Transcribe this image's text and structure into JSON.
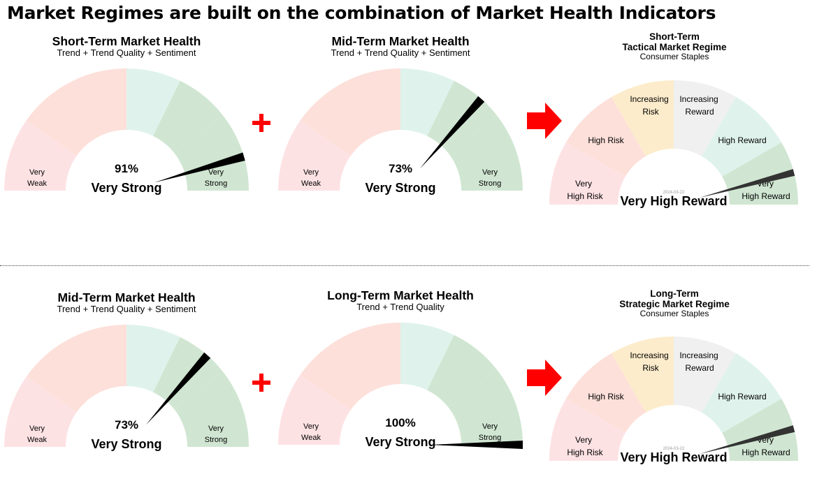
{
  "title": "Market Regimes are built on the combination of Market Health Indicators",
  "colors": {
    "very_weak": "#fde2e4",
    "weak": "#fde0da",
    "neutral_weak": "#fde0da",
    "neutral_strong": "#dff3ec",
    "strong": "#d0e6d2",
    "very_strong": "#d0e6d2",
    "regime_very_high_risk": "#fde2e4",
    "regime_high_risk": "#fde0da",
    "regime_increasing_risk": "#fdeccb",
    "regime_increasing_reward": "#f0f0f0",
    "regime_high_reward": "#dff3ec",
    "regime_very_high_reward": "#d0e6d2",
    "needle": "#000000",
    "regime_needle": "#333333",
    "arrow": "#ff0000",
    "plus": "#ff0000"
  },
  "health_gauges": [
    {
      "id": "st1",
      "title": "Short-Term Market Health",
      "subtitle": "Trend + Trend Quality + Sentiment",
      "value_label": "91%",
      "status": "Very Strong",
      "low_label_1": "Very",
      "low_label_2": "Weak",
      "high_label_1": "Very",
      "high_label_2": "Strong"
    },
    {
      "id": "mt1",
      "title": "Mid-Term Market Health",
      "subtitle": "Trend + Trend Quality + Sentiment",
      "value_label": "73%",
      "status": "Very Strong",
      "low_label_1": "Very",
      "low_label_2": "Weak",
      "high_label_1": "Very",
      "high_label_2": "Strong"
    },
    {
      "id": "mt2",
      "title": "Mid-Term Market Health",
      "subtitle": "Trend + Trend Quality + Sentiment",
      "value_label": "73%",
      "status": "Very Strong",
      "low_label_1": "Very",
      "low_label_2": "Weak",
      "high_label_1": "Very",
      "high_label_2": "Strong"
    },
    {
      "id": "lt2",
      "title": "Long-Term Market Health",
      "subtitle": "Trend + Trend Quality",
      "value_label": "100%",
      "status": "Very Strong",
      "low_label_1": "Very",
      "low_label_2": "Weak",
      "high_label_1": "Very",
      "high_label_2": "Strong"
    }
  ],
  "regime_gauges": [
    {
      "id": "reg1",
      "title_1": "Short-Term",
      "title_2": "Tactical Market Regime",
      "sector": "Consumer Staples",
      "date": "2024-03-22",
      "status": "Very High Reward",
      "labels": {
        "very_high_risk": [
          "Very",
          "High Risk"
        ],
        "high_risk": [
          "High Risk"
        ],
        "increasing_risk": [
          "Increasing",
          "Risk"
        ],
        "increasing_reward": [
          "Increasing",
          "Reward"
        ],
        "high_reward": [
          "High Reward"
        ],
        "very_high_reward": [
          "Very",
          "High Reward"
        ]
      }
    },
    {
      "id": "reg2",
      "title_1": "Long-Term",
      "title_2": "Strategic Market Regime",
      "sector": "Consumer Staples",
      "date": "2024-03-22",
      "status": "Very High Reward",
      "labels": {
        "very_high_risk": [
          "Very",
          "High Risk"
        ],
        "high_risk": [
          "High Risk"
        ],
        "increasing_risk": [
          "Increasing",
          "Risk"
        ],
        "increasing_reward": [
          "Increasing",
          "Reward"
        ],
        "high_reward": [
          "High Reward"
        ],
        "very_high_reward": [
          "Very",
          "High Reward"
        ]
      }
    }
  ],
  "chart_data": [
    {
      "type": "gauge",
      "title": "Short-Term Market Health",
      "subtitle": "Trend + Trend Quality + Sentiment",
      "value": 91,
      "unit": "%",
      "status": "Very Strong",
      "scale": [
        "Very Weak",
        "Very Strong"
      ],
      "range": [
        0,
        100
      ]
    },
    {
      "type": "gauge",
      "title": "Mid-Term Market Health",
      "subtitle": "Trend + Trend Quality + Sentiment",
      "value": 73,
      "unit": "%",
      "status": "Very Strong",
      "scale": [
        "Very Weak",
        "Very Strong"
      ],
      "range": [
        0,
        100
      ]
    },
    {
      "type": "gauge",
      "title": "Short-Term Tactical Market Regime",
      "subtitle": "Consumer Staples",
      "date": "2024-03-22",
      "status": "Very High Reward",
      "categories": [
        "Very High Risk",
        "High Risk",
        "Increasing Risk",
        "Increasing Reward",
        "High Reward",
        "Very High Reward"
      ]
    },
    {
      "type": "gauge",
      "title": "Mid-Term Market Health",
      "subtitle": "Trend + Trend Quality + Sentiment",
      "value": 73,
      "unit": "%",
      "status": "Very Strong",
      "scale": [
        "Very Weak",
        "Very Strong"
      ],
      "range": [
        0,
        100
      ]
    },
    {
      "type": "gauge",
      "title": "Long-Term Market Health",
      "subtitle": "Trend + Trend Quality",
      "value": 100,
      "unit": "%",
      "status": "Very Strong",
      "scale": [
        "Very Weak",
        "Very Strong"
      ],
      "range": [
        0,
        100
      ]
    },
    {
      "type": "gauge",
      "title": "Long-Term Strategic Market Regime",
      "subtitle": "Consumer Staples",
      "date": "2024-03-22",
      "status": "Very High Reward",
      "categories": [
        "Very High Risk",
        "High Risk",
        "Increasing Risk",
        "Increasing Reward",
        "High Reward",
        "Very High Reward"
      ]
    }
  ]
}
